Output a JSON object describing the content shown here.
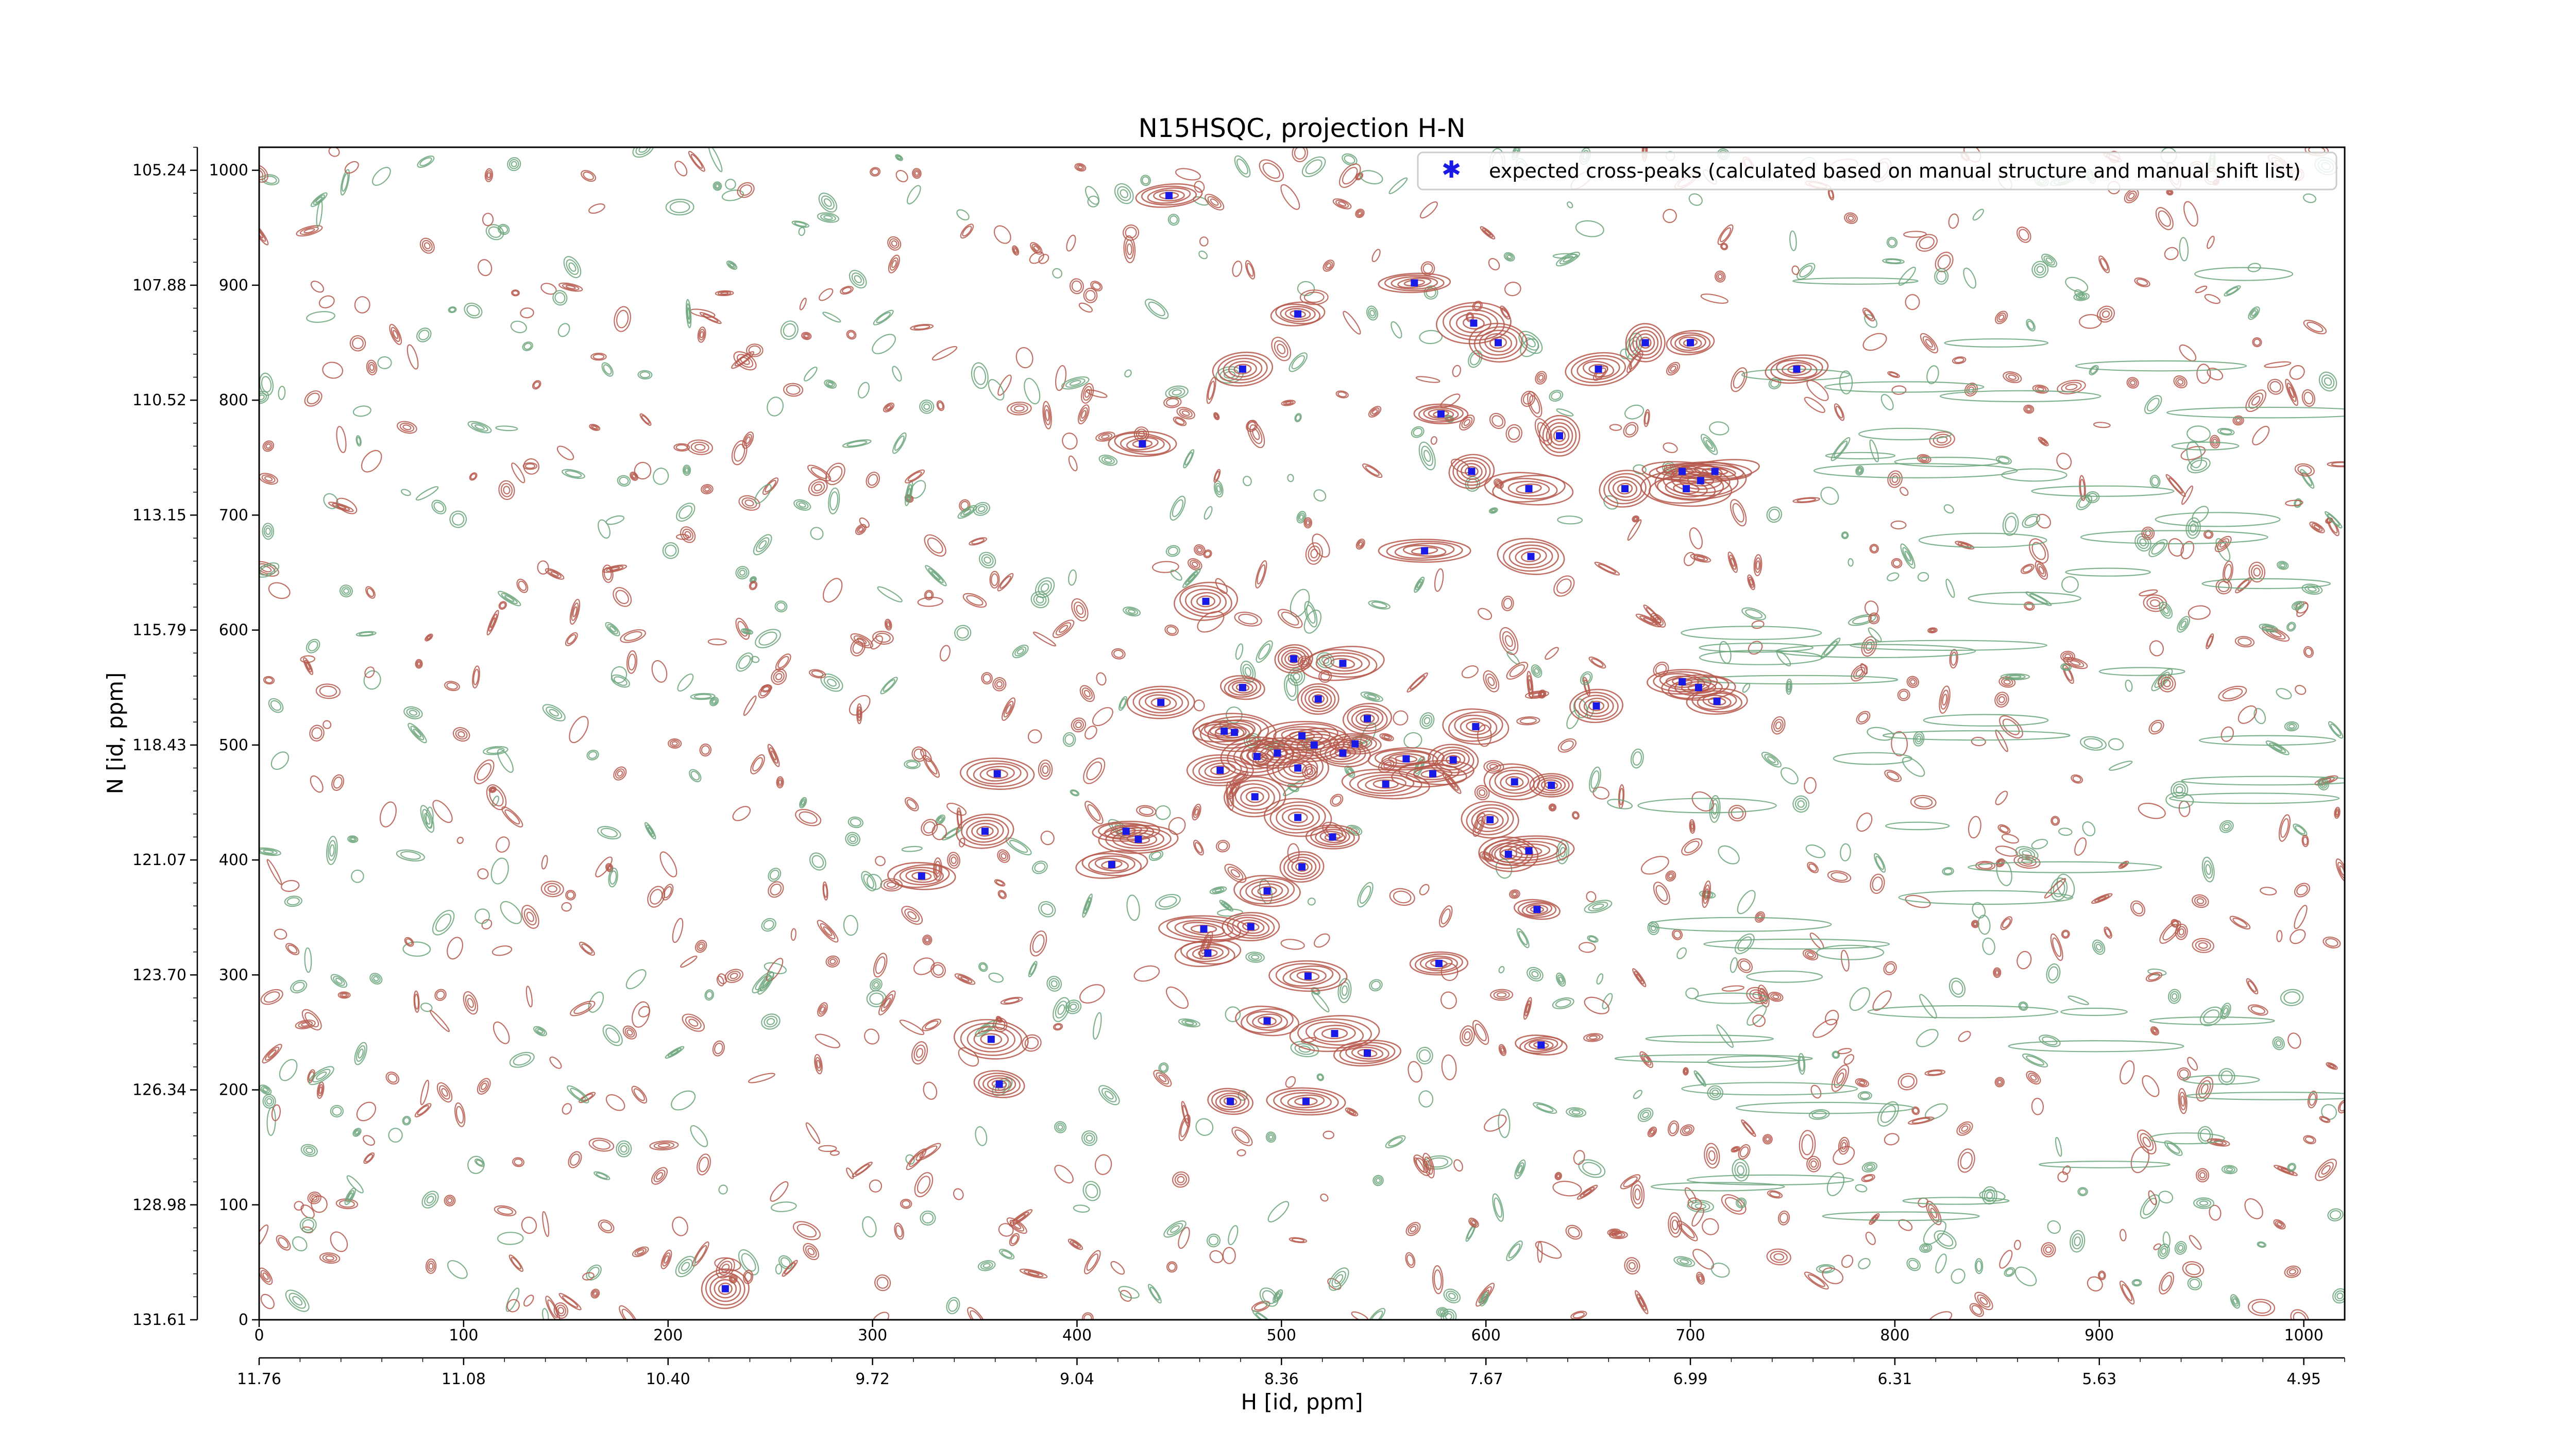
{
  "chart_data": {
    "type": "scatter",
    "title": "N15HSQC, projection H-N",
    "xlabel": "H [id, ppm]",
    "ylabel": "N [id, ppm]",
    "xlim": [
      0,
      1020
    ],
    "ylim": [
      0,
      1020
    ],
    "x_ticks_id": [
      "0",
      "100",
      "200",
      "300",
      "400",
      "500",
      "600",
      "700",
      "800",
      "900",
      "1000"
    ],
    "x_ticks_ppm": [
      "11.76",
      "11.08",
      "10.40",
      "9.72",
      "9.04",
      "8.36",
      "7.67",
      "6.99",
      "6.31",
      "5.63",
      "4.95"
    ],
    "y_ticks_id": [
      "0",
      "100",
      "200",
      "300",
      "400",
      "500",
      "600",
      "700",
      "800",
      "900",
      "1000"
    ],
    "y_ticks_ppm": [
      "131.61",
      "128.98",
      "126.34",
      "123.70",
      "121.07",
      "118.43",
      "115.79",
      "113.15",
      "110.52",
      "107.88",
      "105.24"
    ],
    "legend": {
      "label": "expected cross-peaks (calculated based on manual structure and manual shift list)",
      "placement": "top-right"
    },
    "colors": {
      "positive_contour": "#b5574a",
      "negative_contour": "#6aa57a",
      "peak_marker": "#1a1ae6"
    },
    "background_contours": "dense noise contours across the spectrum",
    "series": [
      {
        "x": [
          445,
          565,
          508,
          594,
          606,
          481,
          655,
          678,
          700,
          752,
          432,
          578,
          636,
          593,
          621,
          668,
          696,
          698,
          705,
          712,
          570,
          622,
          463,
          481,
          506,
          530,
          654,
          696,
          704,
          713,
          441,
          518,
          542,
          595,
          472,
          477,
          488,
          498,
          510,
          516,
          530,
          536,
          551,
          561,
          574,
          584,
          614,
          632,
          470,
          508,
          487,
          508,
          525,
          602,
          611,
          621,
          361,
          355,
          424,
          417,
          430,
          324,
          493,
          510,
          625,
          462,
          485,
          464,
          577,
          513,
          493,
          526,
          542,
          627,
          358,
          362,
          475,
          512,
          228
        ],
        "y": [
          978,
          902,
          875,
          867,
          850,
          827,
          827,
          850,
          850,
          827,
          762,
          788,
          769,
          738,
          723,
          723,
          738,
          723,
          730,
          738,
          669,
          664,
          625,
          550,
          575,
          571,
          534,
          555,
          550,
          538,
          537,
          540,
          523,
          516,
          512,
          511,
          490,
          493,
          508,
          500,
          493,
          501,
          466,
          488,
          475,
          487,
          468,
          465,
          478,
          480,
          455,
          437,
          420,
          435,
          405,
          408,
          475,
          425,
          425,
          396,
          418,
          386,
          373,
          394,
          357,
          340,
          342,
          319,
          310,
          299,
          260,
          249,
          232,
          239,
          244,
          205,
          190,
          190,
          27
        ]
      }
    ]
  }
}
